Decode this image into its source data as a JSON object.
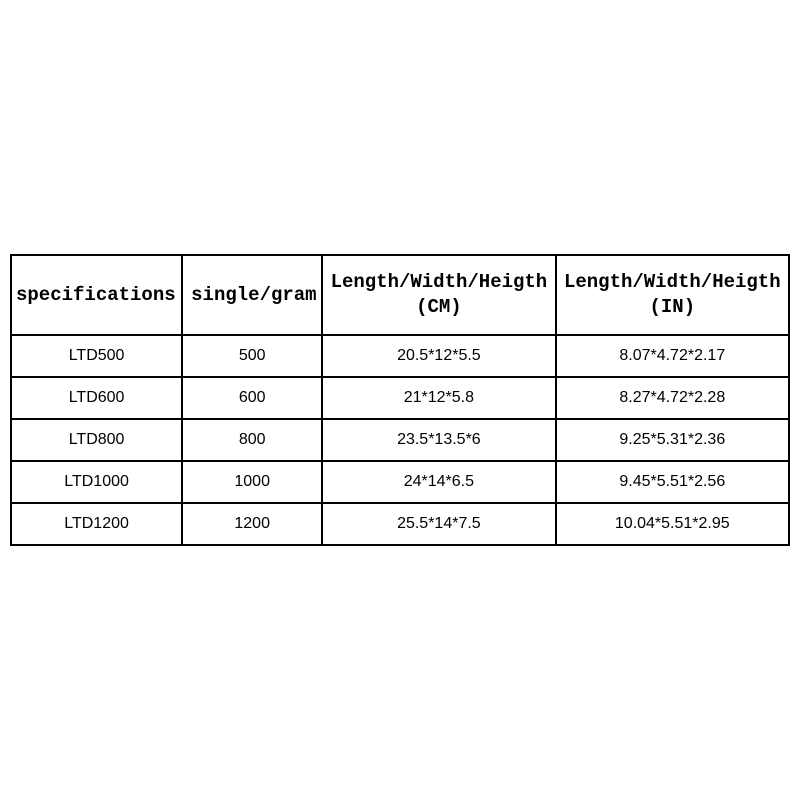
{
  "table": {
    "type": "table",
    "background_color": "#ffffff",
    "border_color": "#000000",
    "border_width": 2,
    "header_font_family": "Courier New, monospace",
    "header_font_size": 19,
    "header_font_weight": "bold",
    "body_font_family": "Arial, sans-serif",
    "body_font_size": 16,
    "text_color": "#000000",
    "header_row_height": 80,
    "body_row_height": 42,
    "columns": [
      {
        "label_line1": "specifications",
        "label_line2": "",
        "width_pct": 22,
        "align": "left"
      },
      {
        "label_line1": "single/gram",
        "label_line2": "",
        "width_pct": 18,
        "align": "left"
      },
      {
        "label_line1": "Length/Width/Heigth",
        "label_line2": "(CM)",
        "width_pct": 30,
        "align": "center"
      },
      {
        "label_line1": "Length/Width/Heigth",
        "label_line2": "(IN)",
        "width_pct": 30,
        "align": "center"
      }
    ],
    "rows": [
      {
        "spec": "LTD500",
        "weight": "500",
        "dim_cm": "20.5*12*5.5",
        "dim_in": "8.07*4.72*2.17"
      },
      {
        "spec": "LTD600",
        "weight": "600",
        "dim_cm": "21*12*5.8",
        "dim_in": "8.27*4.72*2.28"
      },
      {
        "spec": "LTD800",
        "weight": "800",
        "dim_cm": "23.5*13.5*6",
        "dim_in": "9.25*5.31*2.36"
      },
      {
        "spec": "LTD1000",
        "weight": "1000",
        "dim_cm": "24*14*6.5",
        "dim_in": "9.45*5.51*2.56"
      },
      {
        "spec": "LTD1200",
        "weight": "1200",
        "dim_cm": "25.5*14*7.5",
        "dim_in": "10.04*5.51*2.95"
      }
    ]
  }
}
